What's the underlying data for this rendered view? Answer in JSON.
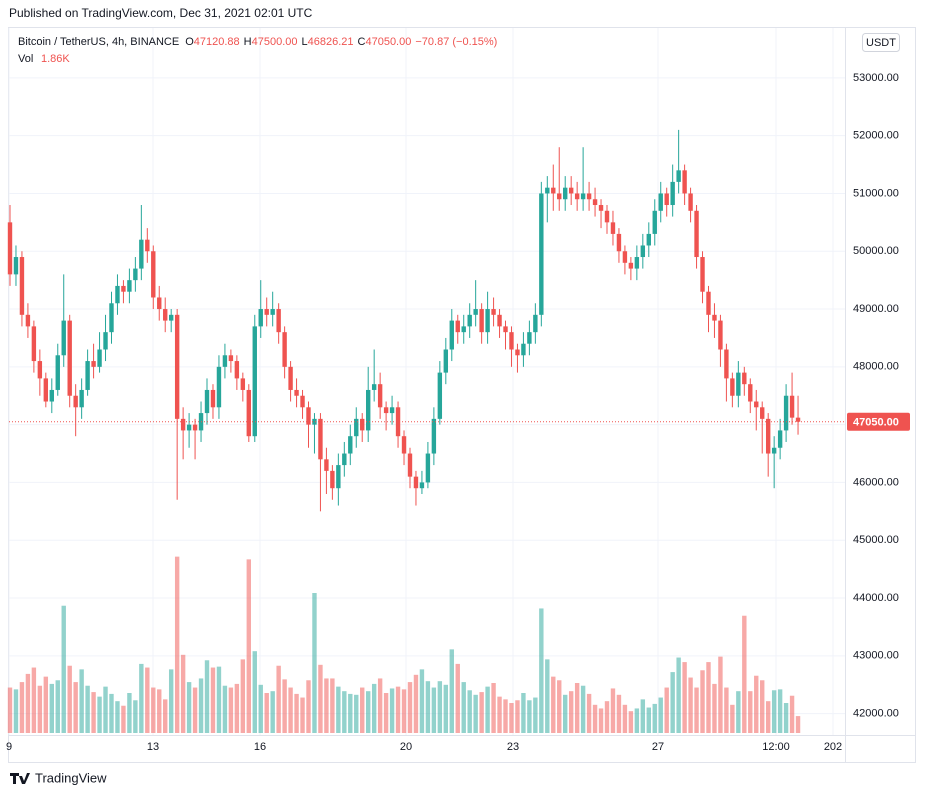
{
  "published": "Published on TradingView.com, Dec 31, 2021 02:01 UTC",
  "footer": "TradingView",
  "chart_data": {
    "type": "candlestick",
    "header": {
      "symbol": "Bitcoin / TetherUS, 4h, BINANCE",
      "ohlc": [
        {
          "label": "O",
          "value": "47120.88"
        },
        {
          "label": "H",
          "value": "47500.00"
        },
        {
          "label": "L",
          "value": "46826.21"
        },
        {
          "label": "C",
          "value": "47050.00"
        }
      ],
      "change": "−70.87 (−0.15%)",
      "volume_label": "Vol",
      "volume_value": "1.86K"
    },
    "currency": "USDT",
    "up_color": "#26a69a",
    "down_color": "#ef5350",
    "ylim": [
      41630,
      53880
    ],
    "yticks": [
      {
        "value": 42000,
        "label": "42000.00"
      },
      {
        "value": 43000,
        "label": "43000.00"
      },
      {
        "value": 44000,
        "label": "44000.00"
      },
      {
        "value": 45000,
        "label": "45000.00"
      },
      {
        "value": 46000,
        "label": "46000.00"
      },
      {
        "value": 47000,
        "label": "47000.00"
      },
      {
        "value": 48000,
        "label": "48000.00"
      },
      {
        "value": 49000,
        "label": "49000.00"
      },
      {
        "value": 50000,
        "label": "50000.00"
      },
      {
        "value": 51000,
        "label": "51000.00"
      },
      {
        "value": 52000,
        "label": "52000.00"
      },
      {
        "value": 53000,
        "label": "53000.00"
      }
    ],
    "xticks": [
      "9",
      "13",
      "16",
      "20",
      "23",
      "27",
      "12:00",
      "202"
    ],
    "grid": true,
    "last_price": {
      "value": 47050,
      "label": "47050.00"
    },
    "open": [
      50500,
      49600,
      49900,
      48900,
      48700,
      48100,
      47800,
      47400,
      47600,
      48200,
      48800,
      47500,
      47300,
      47600,
      48100,
      48000,
      48300,
      48600,
      49100,
      49400,
      49300,
      49500,
      49700,
      50200,
      50000,
      49200,
      49000,
      48800,
      48900,
      47100,
      46900,
      47000,
      46900,
      47200,
      47600,
      47300,
      48000,
      48200,
      48100,
      47800,
      47600,
      46800,
      48700,
      49000,
      48900,
      49000,
      48600,
      48000,
      47600,
      47500,
      47300,
      47000,
      47100,
      46400,
      46200,
      45900,
      46300,
      46500,
      46800,
      47100,
      46900,
      47600,
      47700,
      47300,
      47200,
      47300,
      46800,
      46500,
      46100,
      45900,
      46000,
      46500,
      47100,
      47900,
      48300,
      48800,
      48600,
      48700,
      48900,
      49000,
      48600,
      49000,
      48900,
      48700,
      48600,
      48300,
      48200,
      48400,
      48600,
      48900,
      51000,
      51100,
      51000,
      50900,
      51100,
      51000,
      50900,
      51000,
      50900,
      50800,
      50700,
      50500,
      50300,
      50000,
      49800,
      49700,
      49900,
      50100,
      50300,
      50700,
      51000,
      50800,
      51200,
      51400,
      51000,
      50700,
      49900,
      49300,
      48900,
      48800,
      48300,
      47800,
      47500,
      47900,
      47700,
      47400,
      47300,
      47100,
      46500,
      46600,
      46900,
      47500,
      47120.88
    ],
    "high": [
      50800,
      50100,
      50000,
      49100,
      48800,
      48300,
      47900,
      47800,
      48400,
      49600,
      48900,
      47700,
      47800,
      48300,
      48400,
      48600,
      48900,
      49300,
      49600,
      49500,
      49700,
      49900,
      50800,
      50400,
      50100,
      49400,
      49200,
      49000,
      49000,
      47300,
      47200,
      47100,
      47400,
      47800,
      47700,
      48200,
      48400,
      48300,
      48200,
      47900,
      47700,
      48900,
      49500,
      49200,
      49300,
      49100,
      48700,
      48100,
      47800,
      47600,
      47400,
      47200,
      47200,
      46600,
      46300,
      46500,
      46700,
      47000,
      47300,
      47200,
      48000,
      48300,
      47900,
      47400,
      47500,
      47400,
      46900,
      46600,
      46200,
      46200,
      46700,
      47300,
      48100,
      48500,
      49000,
      48900,
      48900,
      49100,
      49500,
      49100,
      49300,
      49200,
      49000,
      48800,
      48700,
      48400,
      48600,
      48800,
      49100,
      51200,
      51300,
      51500,
      51800,
      51300,
      51300,
      51200,
      51800,
      51200,
      51100,
      50900,
      50800,
      50700,
      50400,
      50100,
      49900,
      50100,
      50300,
      50500,
      50900,
      51200,
      51100,
      51500,
      52100,
      51500,
      51100,
      50800,
      50000,
      49400,
      49100,
      48900,
      48400,
      47900,
      48100,
      48000,
      47800,
      47600,
      47400,
      47200,
      46800,
      47100,
      47700,
      47900,
      47500
    ],
    "low": [
      49400,
      49400,
      48700,
      48500,
      47900,
      47500,
      47300,
      47200,
      47500,
      48000,
      47300,
      46800,
      47100,
      47500,
      47800,
      47900,
      48100,
      48400,
      48900,
      49100,
      49100,
      49300,
      49500,
      49800,
      49000,
      48800,
      48600,
      48600,
      45700,
      46400,
      46600,
      46400,
      46700,
      47000,
      47100,
      47100,
      47800,
      47900,
      47600,
      47400,
      46700,
      46700,
      48500,
      48700,
      48700,
      48400,
      47800,
      47400,
      47300,
      47100,
      46600,
      46500,
      45500,
      45800,
      45700,
      45600,
      46100,
      46300,
      46600,
      46700,
      46700,
      47400,
      47100,
      46900,
      47000,
      46600,
      46300,
      45900,
      45600,
      45800,
      45900,
      46300,
      47000,
      47700,
      48100,
      48400,
      48400,
      48500,
      48700,
      48400,
      48400,
      48700,
      48500,
      48300,
      48000,
      47900,
      48000,
      48200,
      48400,
      48700,
      50500,
      50700,
      50700,
      50700,
      50800,
      50700,
      50700,
      50700,
      50600,
      50400,
      50300,
      50100,
      49800,
      49600,
      49500,
      49500,
      49700,
      49900,
      50100,
      50500,
      50600,
      50600,
      51000,
      50800,
      50500,
      49700,
      49100,
      48600,
      48500,
      48000,
      47400,
      47300,
      47300,
      47500,
      47200,
      46900,
      46500,
      46100,
      45900,
      46400,
      46700,
      47000,
      46826.21
    ],
    "close": [
      49600,
      49900,
      48900,
      48700,
      48100,
      47800,
      47400,
      47600,
      48200,
      48800,
      47500,
      47300,
      47600,
      48100,
      48000,
      48300,
      48600,
      49100,
      49400,
      49300,
      49500,
      49700,
      50200,
      50000,
      49200,
      49000,
      48800,
      48900,
      47100,
      46900,
      47000,
      46900,
      47200,
      47600,
      47300,
      48000,
      48200,
      48100,
      47800,
      47600,
      46800,
      48700,
      49000,
      48900,
      49000,
      48600,
      48000,
      47600,
      47500,
      47300,
      47000,
      47100,
      46400,
      46200,
      45900,
      46300,
      46500,
      46800,
      47100,
      46900,
      47600,
      47700,
      47300,
      47200,
      47300,
      46800,
      46500,
      46100,
      45900,
      46000,
      46500,
      47100,
      47900,
      48300,
      48800,
      48600,
      48700,
      48900,
      49000,
      48600,
      49000,
      48900,
      48700,
      48600,
      48300,
      48200,
      48400,
      48600,
      48900,
      51000,
      51100,
      51000,
      50900,
      51100,
      51000,
      50900,
      51000,
      50900,
      50800,
      50700,
      50500,
      50300,
      50000,
      49800,
      49700,
      49900,
      50100,
      50300,
      50700,
      51000,
      50800,
      51200,
      51400,
      51000,
      50700,
      49900,
      49300,
      48900,
      48800,
      48300,
      47800,
      47500,
      47900,
      47700,
      47400,
      47300,
      47100,
      46500,
      46600,
      46900,
      47500,
      47120.88,
      47050
    ],
    "volume": [
      5000,
      4800,
      5600,
      6500,
      7200,
      5200,
      6200,
      5400,
      5800,
      14000,
      7400,
      5600,
      7000,
      5200,
      4500,
      4000,
      5100,
      4300,
      3500,
      3000,
      4400,
      3600,
      7600,
      7200,
      5000,
      4800,
      3700,
      7000,
      19400,
      8600,
      5600,
      5000,
      6000,
      8000,
      7200,
      7300,
      5200,
      5000,
      5400,
      8100,
      19100,
      9000,
      5300,
      4400,
      4600,
      7400,
      5900,
      5000,
      4300,
      3900,
      5800,
      15400,
      7500,
      6000,
      6000,
      5100,
      4600,
      4300,
      4200,
      5000,
      4600,
      5400,
      6000,
      4400,
      4900,
      5100,
      4800,
      5600,
      6400,
      7000,
      5700,
      5000,
      5700,
      5300,
      9200,
      7600,
      5600,
      4700,
      4200,
      4500,
      5100,
      5500,
      4000,
      3700,
      3300,
      3600,
      4400,
      3600,
      3900,
      13700,
      8100,
      6200,
      5800,
      4200,
      4600,
      5500,
      5200,
      4300,
      3100,
      2700,
      3500,
      4900,
      4200,
      3100,
      2400,
      2700,
      3700,
      2800,
      3200,
      3900,
      5000,
      6700,
      8300,
      7800,
      6100,
      5000,
      6900,
      7800,
      5400,
      8400,
      5000,
      3100,
      4600,
      12900,
      4600,
      6300,
      5800,
      3500,
      4700,
      4800,
      3300,
      4100,
      1860
    ]
  }
}
